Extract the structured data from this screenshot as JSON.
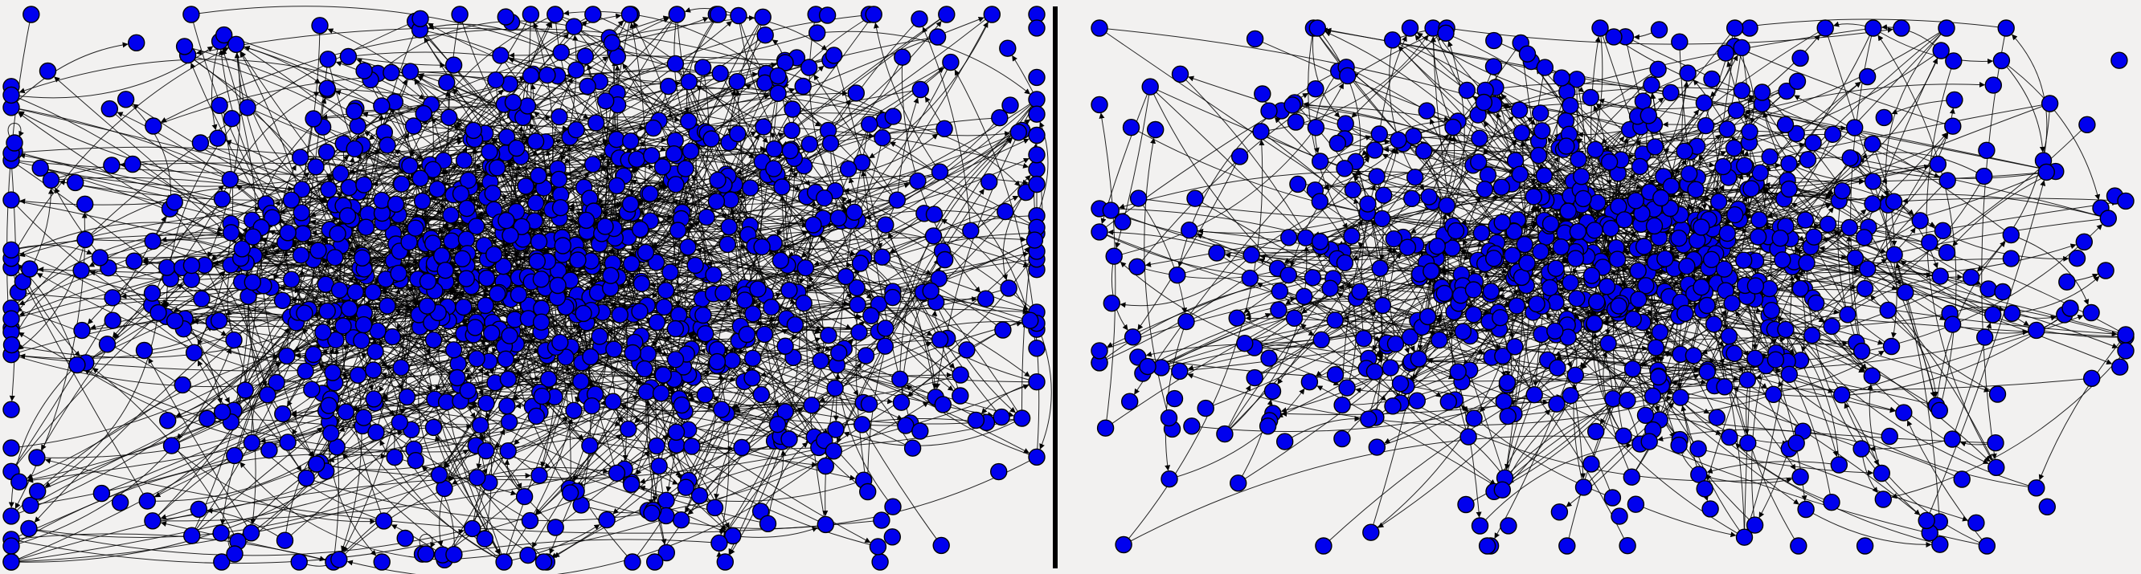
{
  "colors": {
    "background": "#f2f1f0",
    "node_fill": "#0000ee",
    "node_stroke": "#000000",
    "edge": "#000000",
    "divider": "#000000"
  },
  "panels": [
    {
      "id": "left",
      "description_type": "directed-network-graph",
      "dense_core": true,
      "has_self_loops": true
    },
    {
      "id": "right",
      "description_type": "directed-network-graph",
      "dense_core": true,
      "has_self_loops": false
    }
  ]
}
